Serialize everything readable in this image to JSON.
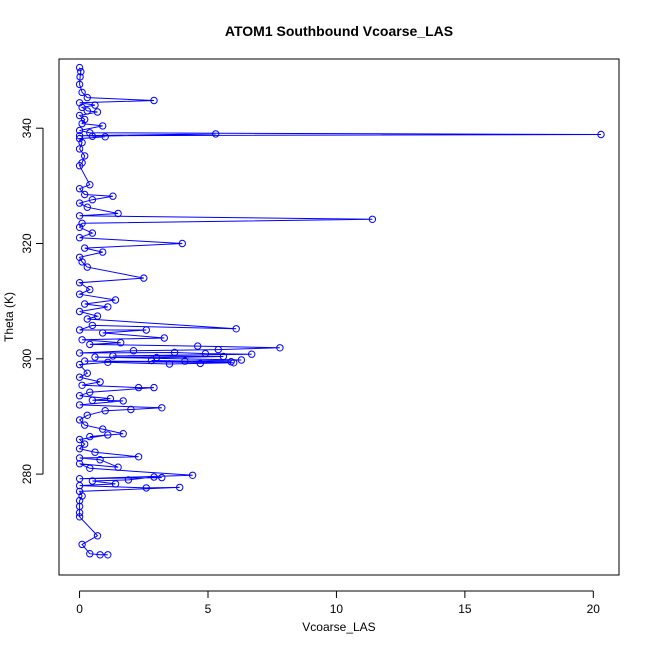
{
  "chart_data": {
    "type": "scatter",
    "title": "ATOM1 Southbound Vcoarse_LAS",
    "xlabel": "Vcoarse_LAS",
    "ylabel": "Theta (K)",
    "xlim": [
      -0.8,
      21.0
    ],
    "ylim": [
      262.5,
      352.0
    ],
    "xticks": [
      0,
      5,
      10,
      15,
      20
    ],
    "yticks": [
      280,
      300,
      320,
      340
    ],
    "grid": false,
    "legend": "none",
    "series_color": "#0000ff",
    "connect_points": true,
    "marker": "open-circle",
    "series": [
      {
        "points": [
          [
            0.0,
            350.5
          ],
          [
            0.05,
            349.8
          ],
          [
            0.02,
            348.9
          ],
          [
            0.0,
            347.6
          ],
          [
            0.1,
            346.2
          ],
          [
            0.3,
            345.3
          ],
          [
            2.9,
            344.8
          ],
          [
            0.0,
            344.4
          ],
          [
            0.6,
            344.0
          ],
          [
            0.1,
            343.6
          ],
          [
            0.3,
            343.0
          ],
          [
            0.7,
            342.8
          ],
          [
            0.0,
            342.2
          ],
          [
            0.2,
            341.5
          ],
          [
            0.1,
            340.8
          ],
          [
            0.9,
            340.4
          ],
          [
            0.0,
            339.6
          ],
          [
            0.4,
            339.2
          ],
          [
            20.3,
            338.9
          ],
          [
            0.0,
            338.7
          ],
          [
            5.3,
            339.0
          ],
          [
            0.5,
            338.6
          ],
          [
            1.0,
            338.5
          ],
          [
            0.0,
            338.2
          ],
          [
            0.1,
            337.5
          ],
          [
            0.0,
            336.4
          ],
          [
            0.2,
            335.2
          ],
          [
            0.1,
            334.0
          ],
          [
            0.0,
            333.5
          ],
          [
            0.4,
            330.2
          ],
          [
            0.0,
            329.5
          ],
          [
            0.2,
            328.5
          ],
          [
            1.3,
            328.2
          ],
          [
            0.5,
            327.6
          ],
          [
            0.0,
            327.0
          ],
          [
            0.3,
            326.3
          ],
          [
            1.5,
            325.2
          ],
          [
            0.0,
            324.8
          ],
          [
            11.4,
            324.2
          ],
          [
            0.1,
            323.5
          ],
          [
            0.0,
            322.8
          ],
          [
            0.5,
            321.8
          ],
          [
            0.0,
            321.0
          ],
          [
            4.0,
            320.0
          ],
          [
            0.2,
            319.2
          ],
          [
            0.9,
            318.5
          ],
          [
            0.0,
            317.6
          ],
          [
            0.1,
            316.8
          ],
          [
            0.3,
            315.9
          ],
          [
            2.5,
            314.0
          ],
          [
            0.0,
            313.2
          ],
          [
            0.4,
            312.0
          ],
          [
            0.0,
            311.2
          ],
          [
            1.4,
            310.2
          ],
          [
            0.2,
            309.5
          ],
          [
            1.1,
            309.0
          ],
          [
            0.0,
            308.2
          ],
          [
            0.7,
            307.4
          ],
          [
            0.3,
            306.9
          ],
          [
            6.1,
            305.2
          ],
          [
            0.5,
            305.8
          ],
          [
            0.0,
            305.0
          ],
          [
            2.6,
            305.0
          ],
          [
            0.9,
            304.5
          ],
          [
            3.3,
            303.6
          ],
          [
            0.1,
            303.3
          ],
          [
            1.6,
            302.8
          ],
          [
            0.4,
            302.5
          ],
          [
            4.6,
            302.2
          ],
          [
            7.8,
            301.9
          ],
          [
            5.4,
            301.6
          ],
          [
            2.1,
            301.4
          ],
          [
            0.0,
            301.0
          ],
          [
            3.7,
            301.1
          ],
          [
            4.9,
            300.9
          ],
          [
            6.7,
            300.8
          ],
          [
            1.3,
            300.5
          ],
          [
            5.6,
            300.4
          ],
          [
            3.0,
            300.2
          ],
          [
            0.6,
            300.3
          ],
          [
            6.3,
            299.8
          ],
          [
            4.1,
            299.6
          ],
          [
            2.8,
            299.7
          ],
          [
            5.9,
            299.5
          ],
          [
            0.2,
            299.6
          ],
          [
            6.0,
            299.3
          ],
          [
            4.7,
            299.2
          ],
          [
            3.5,
            299.1
          ],
          [
            1.1,
            299.4
          ],
          [
            0.0,
            299.0
          ],
          [
            0.3,
            297.5
          ],
          [
            0.0,
            296.8
          ],
          [
            0.8,
            296.0
          ],
          [
            0.1,
            295.4
          ],
          [
            2.3,
            295.0
          ],
          [
            2.9,
            295.0
          ],
          [
            0.4,
            294.2
          ],
          [
            0.0,
            293.6
          ],
          [
            1.2,
            293.1
          ],
          [
            0.5,
            292.8
          ],
          [
            1.7,
            292.7
          ],
          [
            0.0,
            292.0
          ],
          [
            3.2,
            291.5
          ],
          [
            2.0,
            291.2
          ],
          [
            1.0,
            291.0
          ],
          [
            0.3,
            290.2
          ],
          [
            0.0,
            289.4
          ],
          [
            0.2,
            288.5
          ],
          [
            0.9,
            287.8
          ],
          [
            1.7,
            287.0
          ],
          [
            0.4,
            286.5
          ],
          [
            1.1,
            286.8
          ],
          [
            0.0,
            286.0
          ],
          [
            0.2,
            285.2
          ],
          [
            0.0,
            284.4
          ],
          [
            0.6,
            283.8
          ],
          [
            2.3,
            283.0
          ],
          [
            0.0,
            282.8
          ],
          [
            0.8,
            282.5
          ],
          [
            1.5,
            281.2
          ],
          [
            0.0,
            281.8
          ],
          [
            0.4,
            281.0
          ],
          [
            4.4,
            279.8
          ],
          [
            0.0,
            279.2
          ],
          [
            3.2,
            279.4
          ],
          [
            2.9,
            279.5
          ],
          [
            1.9,
            279.0
          ],
          [
            0.5,
            278.8
          ],
          [
            1.4,
            278.3
          ],
          [
            0.0,
            278.0
          ],
          [
            2.6,
            277.6
          ],
          [
            3.9,
            277.7
          ],
          [
            0.0,
            277.0
          ],
          [
            0.1,
            276.2
          ],
          [
            0.0,
            275.4
          ],
          [
            0.0,
            274.4
          ],
          [
            0.0,
            273.3
          ],
          [
            0.0,
            272.6
          ],
          [
            0.7,
            269.3
          ],
          [
            0.1,
            267.8
          ],
          [
            0.4,
            266.2
          ],
          [
            0.8,
            266.0
          ],
          [
            1.1,
            266.0
          ]
        ]
      }
    ]
  }
}
